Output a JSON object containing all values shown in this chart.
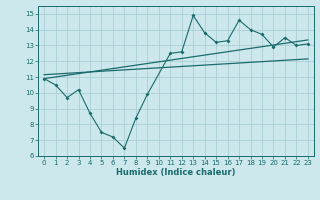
{
  "xlabel": "Humidex (Indice chaleur)",
  "bg_color": "#cce8ec",
  "grid_color": "#aacfd6",
  "line_color": "#1a6b6b",
  "xlim": [
    -0.5,
    23.5
  ],
  "ylim": [
    6,
    15.5
  ],
  "xticks": [
    0,
    1,
    2,
    3,
    4,
    5,
    6,
    7,
    8,
    9,
    10,
    11,
    12,
    13,
    14,
    15,
    16,
    17,
    18,
    19,
    20,
    21,
    22,
    23
  ],
  "yticks": [
    6,
    7,
    8,
    9,
    10,
    11,
    12,
    13,
    14,
    15
  ],
  "main_x": [
    0,
    1,
    2,
    3,
    4,
    5,
    6,
    7,
    8,
    9,
    11,
    12,
    13,
    14,
    15,
    16,
    17,
    18,
    19,
    20,
    21,
    22,
    23
  ],
  "main_y": [
    10.9,
    10.5,
    9.7,
    10.2,
    8.7,
    7.5,
    7.2,
    6.5,
    8.4,
    9.9,
    12.5,
    12.6,
    14.9,
    13.8,
    13.2,
    13.3,
    14.6,
    14.0,
    13.7,
    12.9,
    13.5,
    13.0,
    13.1
  ],
  "line1_x": [
    0,
    23
  ],
  "line1_y": [
    10.9,
    13.35
  ],
  "line2_x": [
    0,
    23
  ],
  "line2_y": [
    11.15,
    12.15
  ]
}
